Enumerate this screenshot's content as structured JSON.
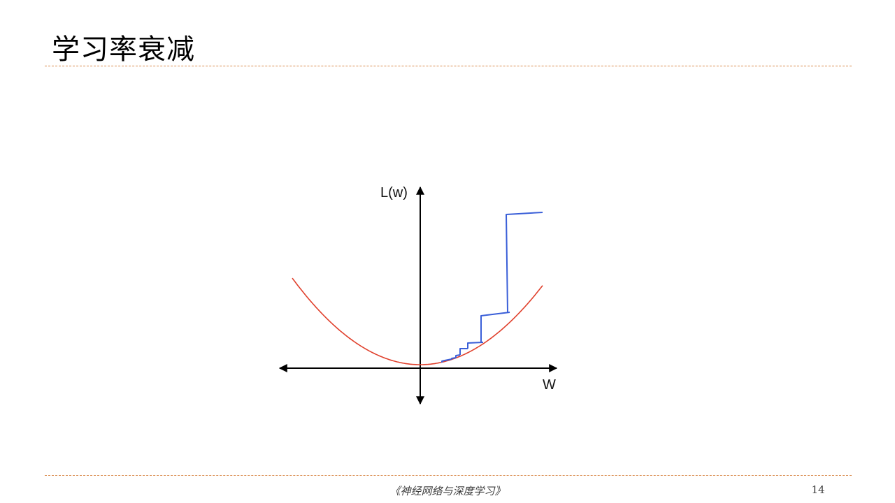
{
  "slide": {
    "title": "学习率衰减",
    "footer": "《神经网络与深度学习》",
    "page_number": "14"
  },
  "diagram": {
    "y_axis_label": "L(w)",
    "x_axis_label": "W",
    "colors": {
      "axes": "#000000",
      "loss_curve": "#e0402c",
      "descent_path": "#3a5fd8",
      "rule": "#d9894a"
    }
  }
}
